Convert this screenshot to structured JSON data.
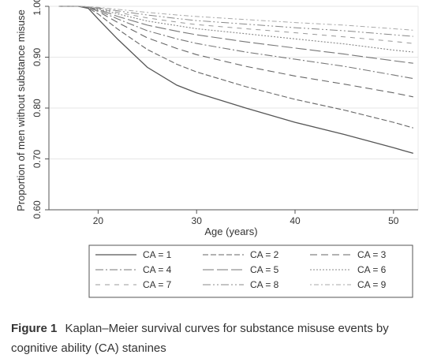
{
  "chart_data": {
    "type": "line",
    "title": "",
    "xlabel": "Age (years)",
    "ylabel": "Proportion of men without substance misuse",
    "xlim": [
      15,
      52.5
    ],
    "ylim": [
      0.6,
      1.0
    ],
    "xticks": [
      20,
      30,
      40,
      50
    ],
    "yticks": [
      0.6,
      0.7,
      0.8,
      0.9,
      1.0
    ],
    "ytick_labels": [
      "0.60",
      "0.70",
      "0.80",
      "0.90",
      "1.00"
    ],
    "grid": "horizontal",
    "legend_position": "bottom",
    "series": [
      {
        "name": "CA = 1",
        "x": [
          16,
          18,
          19,
          20,
          22,
          25,
          28,
          30,
          35,
          40,
          45,
          50,
          52
        ],
        "y": [
          1.0,
          1.0,
          0.996,
          0.975,
          0.935,
          0.88,
          0.845,
          0.83,
          0.8,
          0.772,
          0.748,
          0.722,
          0.711
        ]
      },
      {
        "name": "CA = 2",
        "x": [
          16,
          18,
          19,
          20,
          22,
          25,
          28,
          30,
          35,
          40,
          45,
          50,
          52
        ],
        "y": [
          1.0,
          1.0,
          0.997,
          0.985,
          0.955,
          0.915,
          0.886,
          0.871,
          0.842,
          0.817,
          0.796,
          0.772,
          0.761
        ]
      },
      {
        "name": "CA = 3",
        "x": [
          16,
          18,
          19,
          20,
          22,
          25,
          28,
          30,
          35,
          40,
          45,
          50,
          52
        ],
        "y": [
          1.0,
          1.0,
          0.998,
          0.99,
          0.968,
          0.938,
          0.917,
          0.905,
          0.882,
          0.863,
          0.847,
          0.83,
          0.822
        ]
      },
      {
        "name": "CA = 4",
        "x": [
          16,
          18,
          19,
          20,
          22,
          25,
          28,
          30,
          35,
          40,
          45,
          50,
          52
        ],
        "y": [
          1.0,
          1.0,
          0.998,
          0.992,
          0.975,
          0.952,
          0.936,
          0.927,
          0.91,
          0.896,
          0.882,
          0.865,
          0.858
        ]
      },
      {
        "name": "CA = 5",
        "x": [
          16,
          18,
          19,
          20,
          22,
          25,
          28,
          30,
          35,
          40,
          45,
          50,
          52
        ],
        "y": [
          1.0,
          1.0,
          0.998,
          0.994,
          0.98,
          0.963,
          0.951,
          0.944,
          0.93,
          0.918,
          0.906,
          0.893,
          0.888
        ]
      },
      {
        "name": "CA = 6",
        "x": [
          16,
          18,
          19,
          20,
          22,
          25,
          28,
          30,
          35,
          40,
          45,
          50,
          52
        ],
        "y": [
          1.0,
          1.0,
          0.999,
          0.995,
          0.985,
          0.971,
          0.962,
          0.956,
          0.946,
          0.936,
          0.926,
          0.914,
          0.91
        ]
      },
      {
        "name": "CA = 7",
        "x": [
          16,
          18,
          19,
          20,
          22,
          25,
          28,
          30,
          35,
          40,
          45,
          50,
          52
        ],
        "y": [
          1.0,
          1.0,
          0.999,
          0.996,
          0.988,
          0.977,
          0.969,
          0.964,
          0.956,
          0.948,
          0.94,
          0.931,
          0.927
        ]
      },
      {
        "name": "CA = 8",
        "x": [
          16,
          18,
          19,
          20,
          22,
          25,
          28,
          30,
          35,
          40,
          45,
          50,
          52
        ],
        "y": [
          1.0,
          1.0,
          0.999,
          0.997,
          0.991,
          0.983,
          0.976,
          0.972,
          0.965,
          0.958,
          0.952,
          0.944,
          0.941
        ]
      },
      {
        "name": "CA = 9",
        "x": [
          16,
          18,
          19,
          20,
          22,
          25,
          28,
          30,
          35,
          40,
          45,
          50,
          52
        ],
        "y": [
          1.0,
          1.0,
          0.999,
          0.998,
          0.994,
          0.988,
          0.983,
          0.98,
          0.974,
          0.968,
          0.963,
          0.956,
          0.953
        ]
      }
    ]
  },
  "caption": {
    "label": "Figure 1",
    "text": "Kaplan–Meier survival curves for substance misuse events by cognitive ability (CA) stanines"
  }
}
